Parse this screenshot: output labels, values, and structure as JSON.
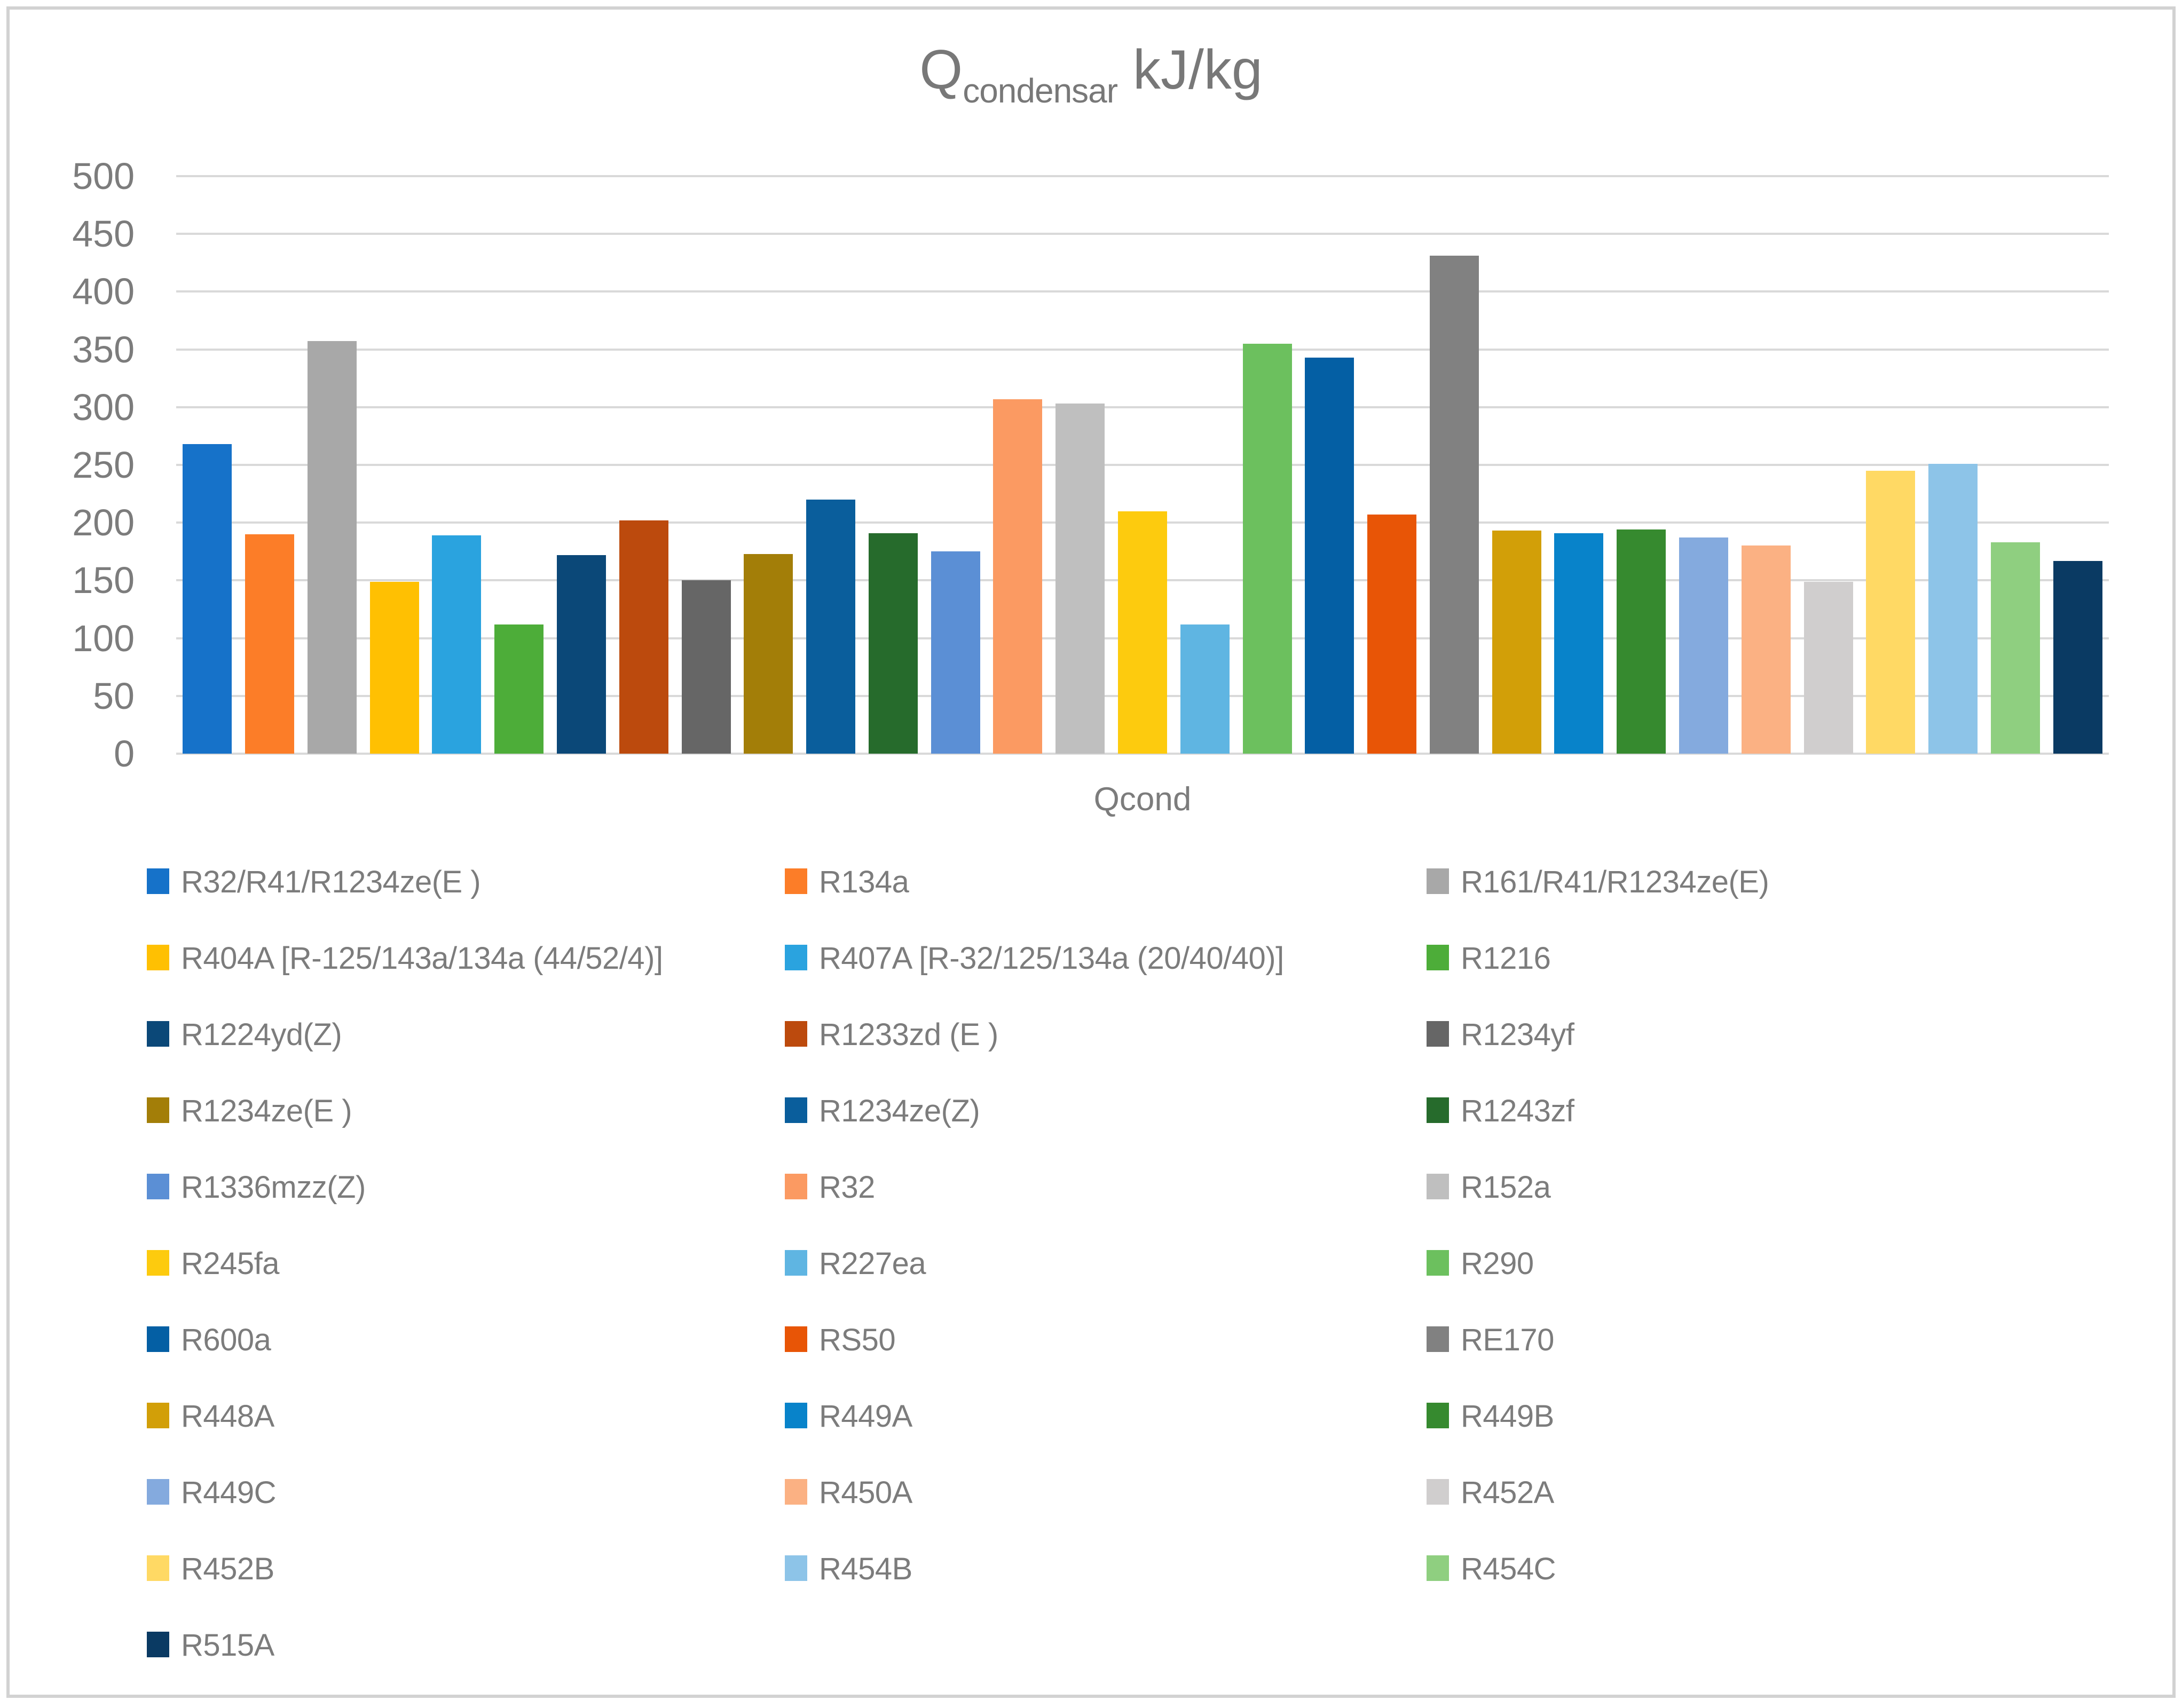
{
  "title": {
    "main": "Q",
    "subscript": "condensar",
    "unit": " kJ/kg"
  },
  "chart_data": {
    "type": "bar",
    "title": "Qcondensar kJ/kg",
    "xlabel": "Qcond",
    "ylabel": "",
    "ylim": [
      0,
      500
    ],
    "ytick_interval": 50,
    "yticks": [
      "0",
      "50",
      "100",
      "150",
      "200",
      "250",
      "300",
      "350",
      "400",
      "450",
      "500"
    ],
    "grid": true,
    "legend_position": "bottom",
    "gridline_color": "#d9d9d9",
    "text_color": "#7c7c7c",
    "series": [
      {
        "name": "R32/R41/R1234ze(E )",
        "value": 268,
        "color": "#1672c9"
      },
      {
        "name": "R134a",
        "value": 190,
        "color": "#fc7d28"
      },
      {
        "name": "R161/R41/R1234ze(E)",
        "value": 357,
        "color": "#a8a8a8"
      },
      {
        "name": "R404A [R-125/143a/134a (44/52/4)]",
        "value": 149,
        "color": "#ffc002"
      },
      {
        "name": "R407A [R-32/125/134a (20/40/40)]",
        "value": 189,
        "color": "#2aa3df"
      },
      {
        "name": "R1216",
        "value": 112,
        "color": "#4dad39"
      },
      {
        "name": "R1224yd(Z)",
        "value": 172,
        "color": "#0b4878"
      },
      {
        "name": "R1233zd (E )",
        "value": 202,
        "color": "#bc4a0d"
      },
      {
        "name": "R1234yf",
        "value": 150,
        "color": "#666666"
      },
      {
        "name": "R1234ze(E )",
        "value": 173,
        "color": "#a37e08"
      },
      {
        "name": "R1234ze(Z)",
        "value": 220,
        "color": "#0a5e9c"
      },
      {
        "name": "R1243zf",
        "value": 191,
        "color": "#266b2c"
      },
      {
        "name": "R1336mzz(Z)",
        "value": 175,
        "color": "#5b8fd5"
      },
      {
        "name": "R32",
        "value": 307,
        "color": "#fb9a62"
      },
      {
        "name": "R152a",
        "value": 303,
        "color": "#bfbfbf"
      },
      {
        "name": "R245fa",
        "value": 210,
        "color": "#fdcb0e"
      },
      {
        "name": "R227ea",
        "value": 112,
        "color": "#5fb5e2"
      },
      {
        "name": "R290",
        "value": 355,
        "color": "#6cc05e"
      },
      {
        "name": "R600a",
        "value": 343,
        "color": "#045fa4"
      },
      {
        "name": "RS50",
        "value": 207,
        "color": "#e85506"
      },
      {
        "name": "RE170",
        "value": 431,
        "color": "#818181"
      },
      {
        "name": "R448A",
        "value": 193,
        "color": "#d29f08"
      },
      {
        "name": "R449A",
        "value": 191,
        "color": "#0883ca"
      },
      {
        "name": "R449B",
        "value": 194,
        "color": "#368a2f"
      },
      {
        "name": "R449C",
        "value": 187,
        "color": "#84aade"
      },
      {
        "name": "R450A",
        "value": 180,
        "color": "#fbb183"
      },
      {
        "name": "R452A",
        "value": 149,
        "color": "#d0cece"
      },
      {
        "name": "R452B",
        "value": 245,
        "color": "#ffd964"
      },
      {
        "name": "R454B",
        "value": 251,
        "color": "#8dc4e8"
      },
      {
        "name": "R454C",
        "value": 183,
        "color": "#8fcf80"
      },
      {
        "name": "R515A",
        "value": 167,
        "color": "#0a3a63"
      }
    ]
  }
}
